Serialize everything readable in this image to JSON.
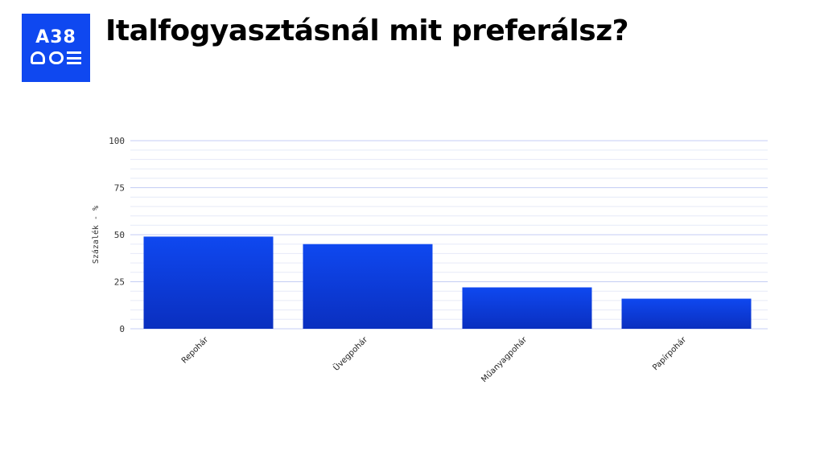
{
  "logo": {
    "text": "A38",
    "bg_color": "#0f48f0"
  },
  "title": "Italfogyasztásnál mit preferálsz?",
  "chart_data": {
    "type": "bar",
    "categories": [
      "Repohár",
      "Üvegpohár",
      "Műanyagpohár",
      "Papírpohár"
    ],
    "values": [
      49,
      45,
      22,
      16
    ],
    "xlabel": "",
    "ylabel": "Százalék - %",
    "ylim": [
      0,
      100
    ],
    "yticks": [
      0,
      25,
      50,
      75,
      100
    ],
    "minor_step": 5,
    "grid": true,
    "legend": "none",
    "colors": {
      "bar_top": "#0f48f0",
      "bar_bottom": "#0a2fbf",
      "major_grid": "#c4cdf4",
      "minor_grid": "#e6eaf8",
      "axis": "#c4cdf4"
    }
  }
}
